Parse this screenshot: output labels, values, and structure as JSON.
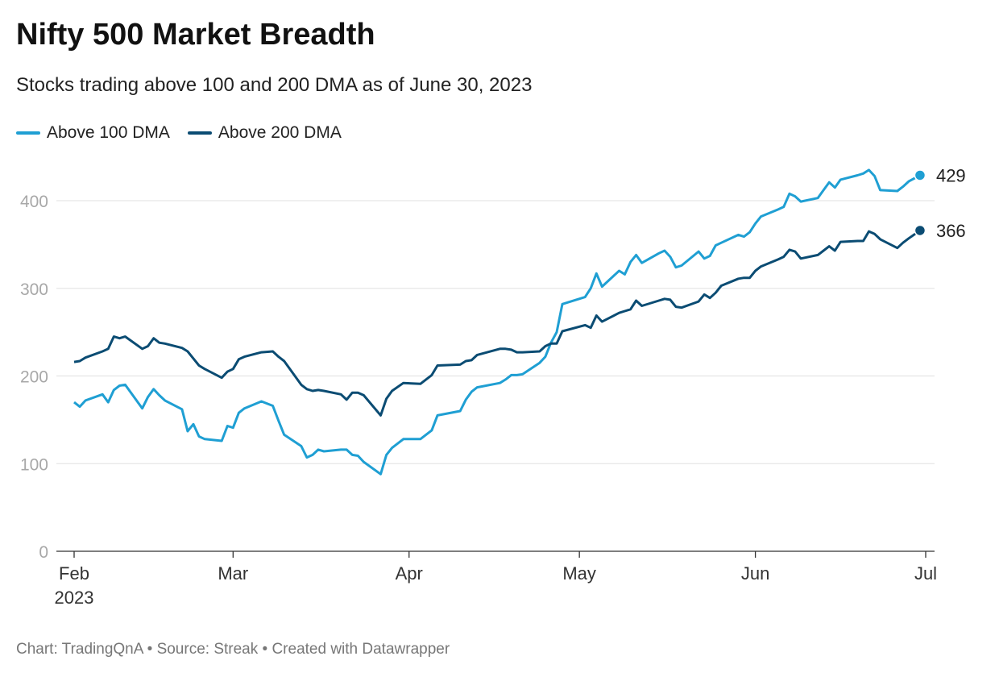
{
  "chart_data": {
    "type": "line",
    "title": "Nifty 500 Market Breadth",
    "subtitle": "Stocks trading above 100 and 200 DMA as of June 30, 2023",
    "footer": "Chart: TradingQnA • Source: Streak • Created with Datawrapper",
    "x": [
      "2023-02-01",
      "2023-02-02",
      "2023-02-03",
      "2023-02-06",
      "2023-02-07",
      "2023-02-08",
      "2023-02-09",
      "2023-02-10",
      "2023-02-13",
      "2023-02-14",
      "2023-02-15",
      "2023-02-16",
      "2023-02-17",
      "2023-02-20",
      "2023-02-21",
      "2023-02-22",
      "2023-02-23",
      "2023-02-24",
      "2023-02-27",
      "2023-02-28",
      "2023-03-01",
      "2023-03-02",
      "2023-03-03",
      "2023-03-06",
      "2023-03-08",
      "2023-03-09",
      "2023-03-10",
      "2023-03-13",
      "2023-03-14",
      "2023-03-15",
      "2023-03-16",
      "2023-03-17",
      "2023-03-20",
      "2023-03-21",
      "2023-03-22",
      "2023-03-23",
      "2023-03-24",
      "2023-03-27",
      "2023-03-28",
      "2023-03-29",
      "2023-03-31",
      "2023-04-03",
      "2023-04-05",
      "2023-04-06",
      "2023-04-10",
      "2023-04-11",
      "2023-04-12",
      "2023-04-13",
      "2023-04-17",
      "2023-04-18",
      "2023-04-19",
      "2023-04-20",
      "2023-04-21",
      "2023-04-24",
      "2023-04-25",
      "2023-04-26",
      "2023-04-27",
      "2023-04-28",
      "2023-05-02",
      "2023-05-03",
      "2023-05-04",
      "2023-05-05",
      "2023-05-08",
      "2023-05-09",
      "2023-05-10",
      "2023-05-11",
      "2023-05-12",
      "2023-05-15",
      "2023-05-16",
      "2023-05-17",
      "2023-05-18",
      "2023-05-19",
      "2023-05-22",
      "2023-05-23",
      "2023-05-24",
      "2023-05-25",
      "2023-05-26",
      "2023-05-29",
      "2023-05-30",
      "2023-05-31",
      "2023-06-01",
      "2023-06-02",
      "2023-06-05",
      "2023-06-06",
      "2023-06-07",
      "2023-06-08",
      "2023-06-09",
      "2023-06-12",
      "2023-06-13",
      "2023-06-14",
      "2023-06-15",
      "2023-06-16",
      "2023-06-19",
      "2023-06-20",
      "2023-06-21",
      "2023-06-22",
      "2023-06-23",
      "2023-06-26",
      "2023-06-27",
      "2023-06-28",
      "2023-06-30"
    ],
    "series": [
      {
        "name": "Above 100 DMA",
        "color": "#1f9fd3",
        "values": [
          170,
          165,
          172,
          179,
          170,
          184,
          189,
          190,
          163,
          176,
          185,
          178,
          172,
          162,
          137,
          145,
          131,
          128,
          126,
          143,
          141,
          158,
          163,
          171,
          166,
          149,
          133,
          120,
          107,
          110,
          116,
          114,
          116,
          116,
          110,
          109,
          102,
          88,
          110,
          118,
          128,
          128,
          138,
          155,
          160,
          173,
          182,
          187,
          192,
          196,
          201,
          201,
          202,
          215,
          222,
          238,
          250,
          282,
          290,
          300,
          317,
          302,
          320,
          316,
          330,
          338,
          329,
          340,
          343,
          336,
          324,
          326,
          342,
          334,
          337,
          349,
          352,
          361,
          359,
          364,
          374,
          382,
          390,
          393,
          408,
          405,
          399,
          403,
          412,
          421,
          415,
          424,
          429,
          431,
          435,
          428,
          412,
          411,
          416,
          422,
          429
        ]
      },
      {
        "name": "Above 200 DMA",
        "color": "#0b4c73",
        "values": [
          216,
          217,
          221,
          228,
          231,
          245,
          243,
          245,
          231,
          234,
          243,
          238,
          237,
          232,
          228,
          220,
          212,
          208,
          198,
          205,
          208,
          219,
          222,
          227,
          228,
          222,
          217,
          190,
          185,
          183,
          184,
          183,
          179,
          173,
          181,
          181,
          178,
          155,
          174,
          183,
          192,
          191,
          201,
          212,
          213,
          217,
          218,
          224,
          231,
          231,
          230,
          227,
          227,
          228,
          234,
          237,
          237,
          251,
          258,
          255,
          269,
          262,
          272,
          274,
          276,
          286,
          280,
          286,
          288,
          287,
          279,
          278,
          285,
          293,
          289,
          295,
          303,
          311,
          312,
          312,
          320,
          325,
          333,
          336,
          344,
          342,
          334,
          338,
          343,
          348,
          343,
          353,
          354,
          354,
          365,
          362,
          356,
          346,
          352,
          357,
          366
        ]
      }
    ],
    "xlim": [
      "2023-02-01",
      "2023-07-01"
    ],
    "xticks": [
      {
        "value": "2023-02-01",
        "label": "Feb 2023"
      },
      {
        "value": "2023-03-01",
        "label": "Mar"
      },
      {
        "value": "2023-04-01",
        "label": "Apr"
      },
      {
        "value": "2023-05-01",
        "label": "May"
      },
      {
        "value": "2023-06-01",
        "label": "Jun"
      },
      {
        "value": "2023-07-01",
        "label": "Jul"
      }
    ],
    "ylim": [
      0,
      440
    ],
    "yticks": [
      0,
      100,
      200,
      300,
      400
    ],
    "grid": true
  }
}
